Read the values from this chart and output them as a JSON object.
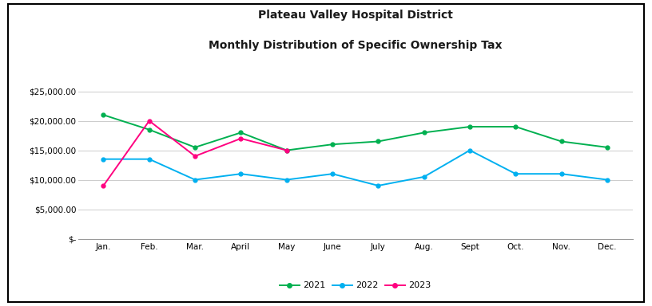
{
  "title_line1": "Plateau Valley Hospital District",
  "title_line2": "Monthly Distribution of Specific Ownership Tax",
  "months": [
    "Jan.",
    "Feb.",
    "Mar.",
    "April",
    "May",
    "June",
    "July",
    "Aug.",
    "Sept",
    "Oct.",
    "Nov.",
    "Dec."
  ],
  "series_2021": [
    21000,
    18500,
    15500,
    18000,
    15000,
    16000,
    16500,
    18000,
    19000,
    19000,
    16500,
    15500
  ],
  "series_2022": [
    13500,
    13500,
    10000,
    11000,
    10000,
    11000,
    9000,
    10500,
    15000,
    11000,
    11000,
    10000
  ],
  "series_2023": [
    9000,
    20000,
    14000,
    17000,
    15000,
    null,
    null,
    null,
    null,
    null,
    null,
    null
  ],
  "color_2021": "#00B050",
  "color_2022": "#00B0F0",
  "color_2023": "#FF0080",
  "ylim_min": 0,
  "ylim_max": 27000,
  "yticks": [
    0,
    5000,
    10000,
    15000,
    20000,
    25000
  ],
  "background_color": "#ffffff",
  "plot_bg_color": "#ffffff",
  "grid_color": "#cccccc",
  "title_fontsize": 10,
  "tick_fontsize": 7.5,
  "legend_fontsize": 8
}
